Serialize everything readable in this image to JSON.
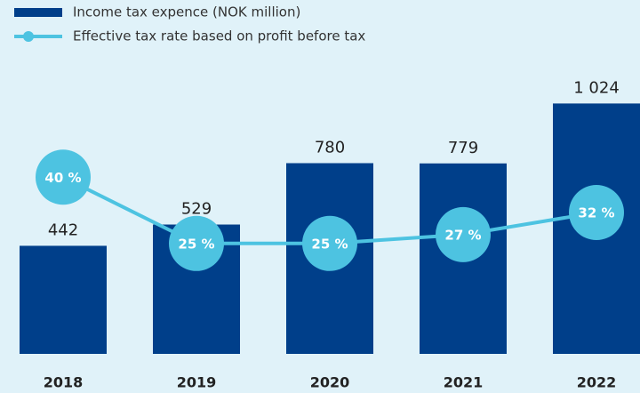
{
  "chart_data": {
    "type": "bar",
    "categories": [
      "2018",
      "2019",
      "2020",
      "2021",
      "2022"
    ],
    "series": [
      {
        "name": "Income tax expence (NOK million)",
        "color": "#003f8a",
        "values": [
          442,
          529,
          780,
          779,
          1024
        ],
        "value_labels": [
          "442",
          "529",
          "780",
          "779",
          "1 024"
        ]
      },
      {
        "name": "Effective tax rate based on profit before tax",
        "type": "line",
        "axis": "y2",
        "color": "#4dc3e1",
        "values": [
          40,
          25,
          25,
          27,
          32
        ],
        "value_labels": [
          "40 %",
          "25 %",
          "25 %",
          "27 %",
          "32 %"
        ]
      }
    ],
    "ylim": [
      0,
      1120
    ],
    "y2lim": [
      0,
      62
    ]
  }
}
